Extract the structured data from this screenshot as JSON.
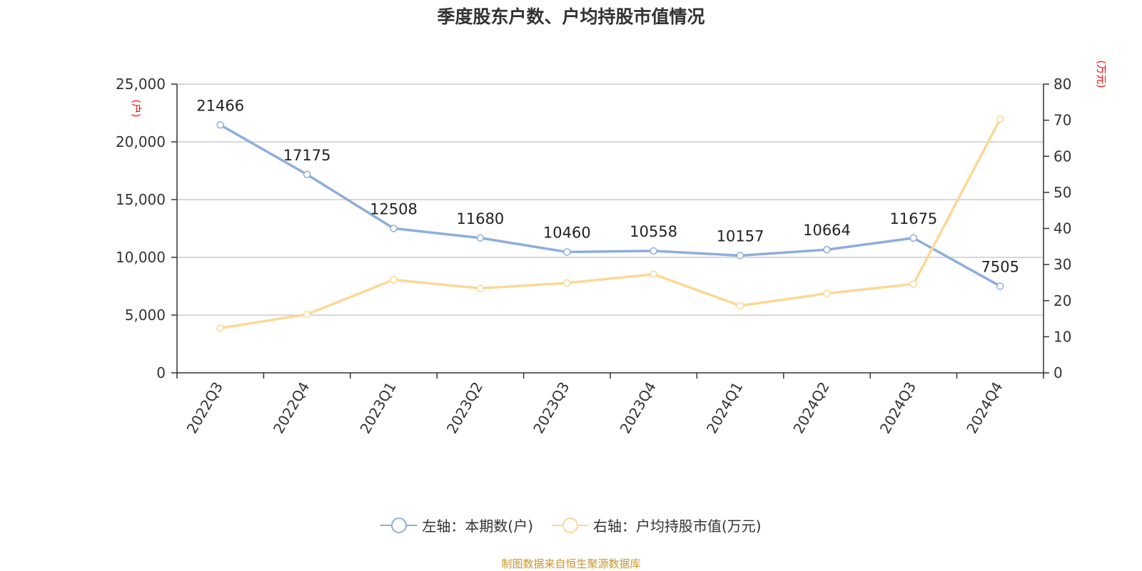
{
  "chart_data": {
    "type": "line",
    "title": "季度股东户数、户均持股市值情况",
    "categories": [
      "2022Q3",
      "2022Q4",
      "2023Q1",
      "2023Q2",
      "2023Q3",
      "2023Q4",
      "2024Q1",
      "2024Q2",
      "2024Q3",
      "2024Q4"
    ],
    "series": [
      {
        "name": "左轴：本期数(户)",
        "axis": "left",
        "color": "#8eaedb",
        "values": [
          21466,
          17175,
          12508,
          11680,
          10460,
          10558,
          10157,
          10664,
          11675,
          7505
        ]
      },
      {
        "name": "右轴：户均持股市值(万元)",
        "axis": "right",
        "color": "#fcd896",
        "values": [
          12.4,
          16.2,
          25.8,
          23.4,
          24.9,
          27.3,
          18.6,
          22.0,
          24.6,
          70.3
        ]
      }
    ],
    "left_axis": {
      "label": "(户)",
      "range": [
        0,
        25000
      ],
      "ticks": [
        "0",
        "5,000",
        "10,000",
        "15,000",
        "20,000",
        "25,000"
      ]
    },
    "right_axis": {
      "label": "(万元)",
      "range": [
        0,
        80
      ],
      "ticks": [
        "0",
        "10",
        "20",
        "30",
        "40",
        "50",
        "60",
        "70",
        "80"
      ]
    },
    "grid": true,
    "legend_position": "bottom"
  },
  "source": "制图数据来自恒生聚源数据库"
}
